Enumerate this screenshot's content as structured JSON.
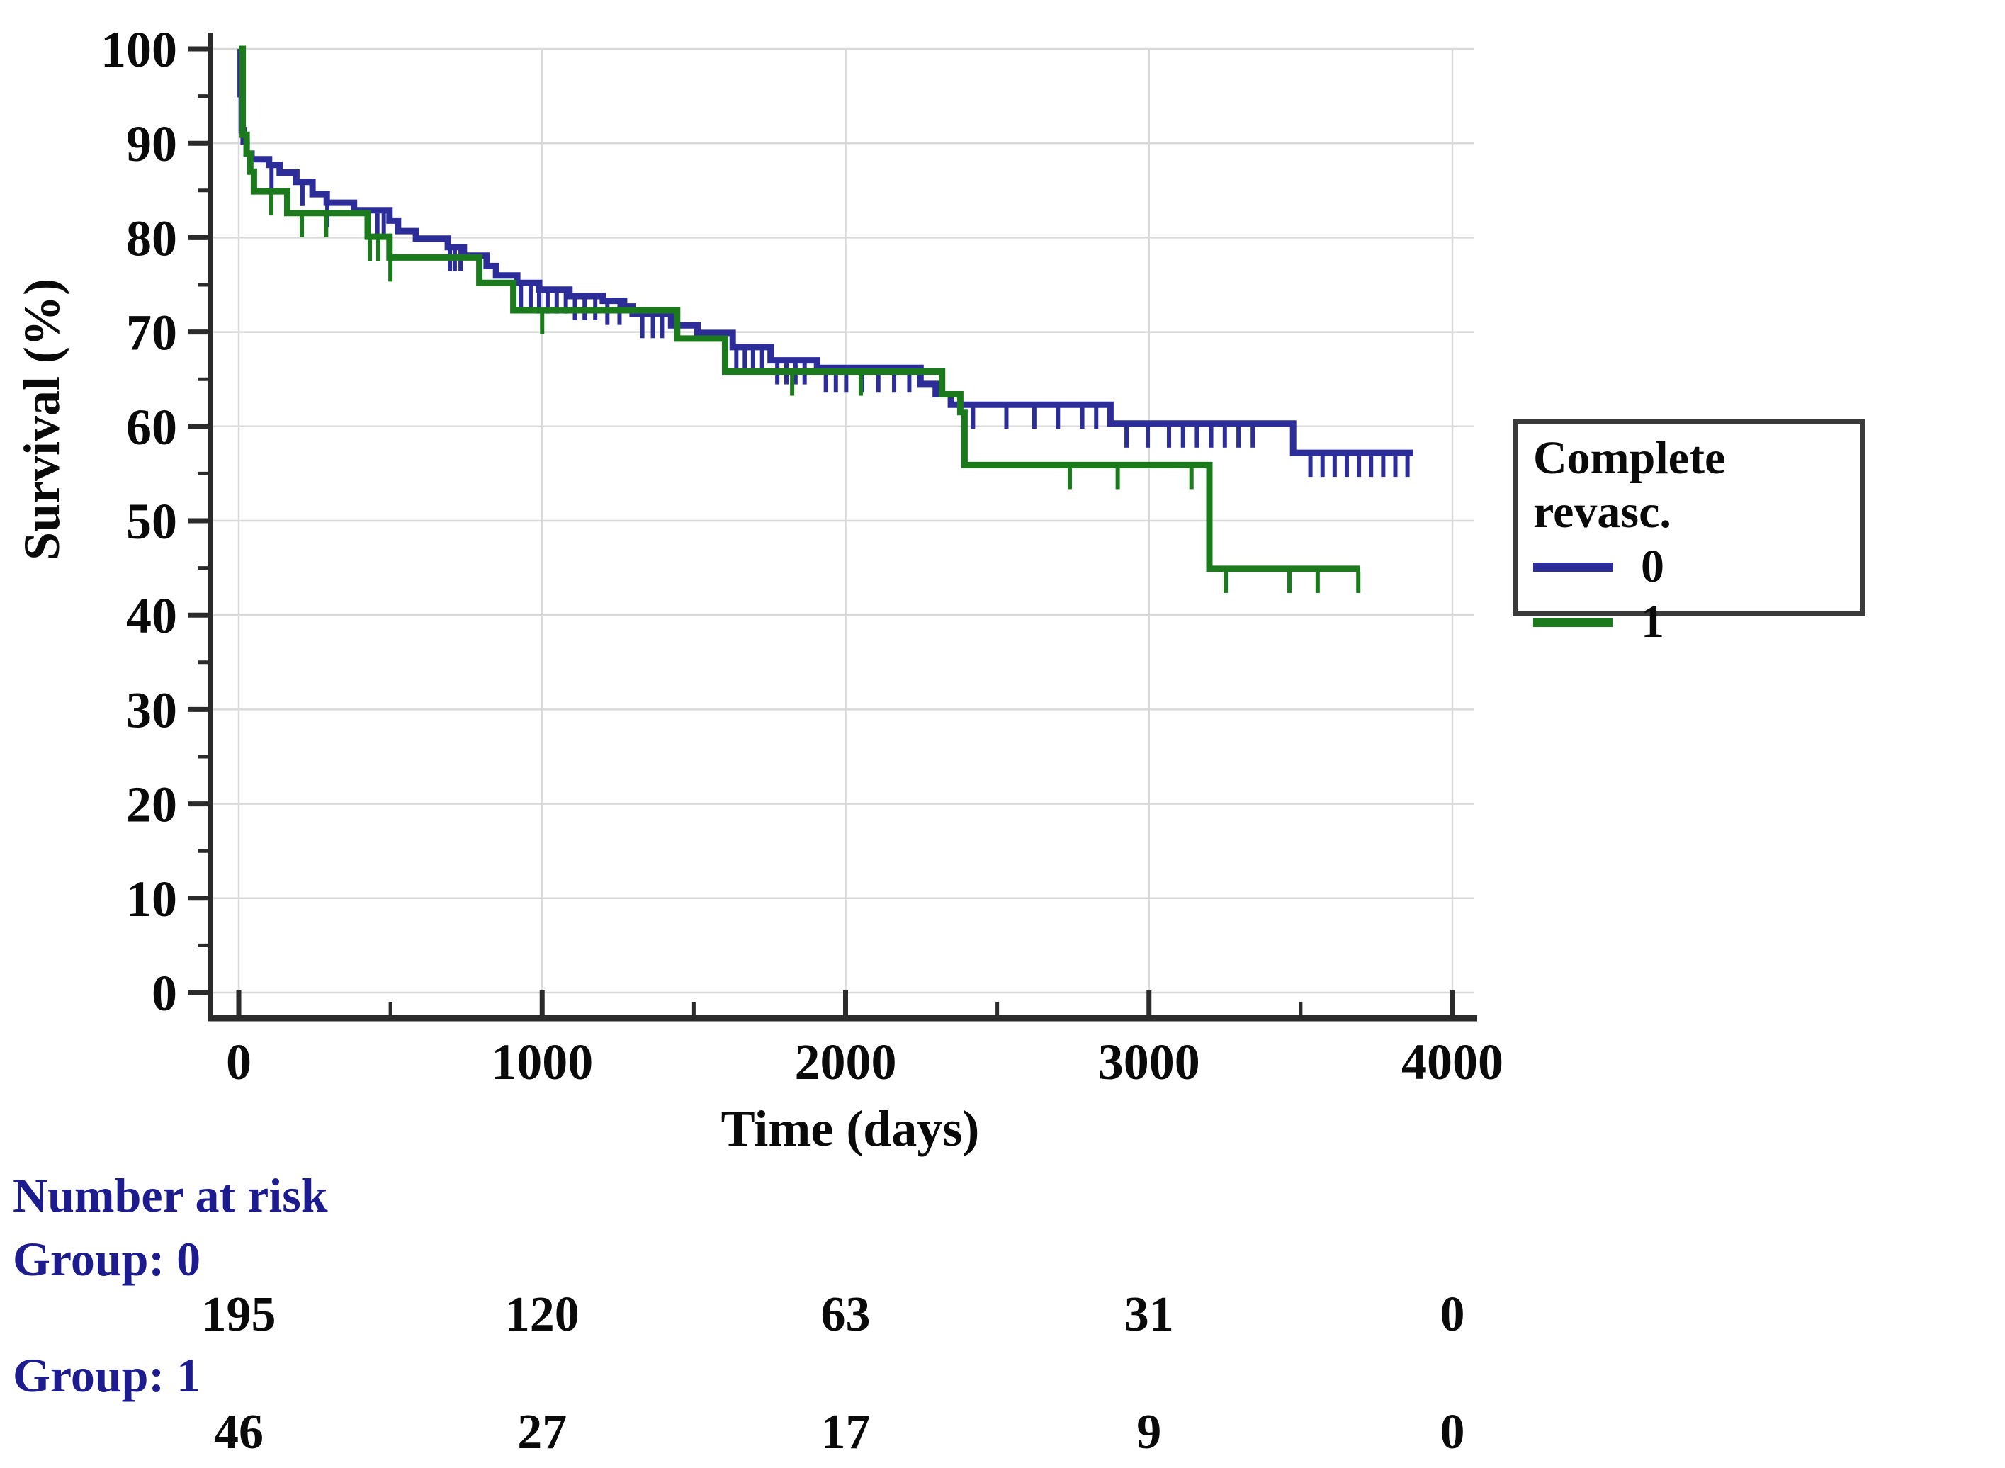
{
  "chart_data": {
    "type": "line",
    "subtype": "kaplan-meier-step",
    "title": "",
    "xlabel": "Time (days)",
    "ylabel": "Survival (%)",
    "xlim": [
      0,
      4000
    ],
    "ylim": [
      0,
      100
    ],
    "x_ticks": [
      0,
      1000,
      2000,
      3000,
      4000
    ],
    "x_minor_ticks": [
      500,
      1500,
      2500,
      3500
    ],
    "y_ticks": [
      0,
      10,
      20,
      30,
      40,
      50,
      60,
      70,
      80,
      90,
      100
    ],
    "y_minor_ticks": [
      5,
      15,
      25,
      35,
      45,
      55,
      65,
      75,
      85,
      95
    ],
    "grid": "light-gray-both-axes",
    "legend": {
      "title": "Complete revasc.",
      "position": "right",
      "entries": [
        {
          "label": "0",
          "color": "#2d2d99"
        },
        {
          "label": "1",
          "color": "#1b7a1b"
        }
      ]
    },
    "series": [
      {
        "name": "0",
        "color": "#2d2d99",
        "steps": [
          [
            0,
            100
          ],
          [
            6,
            95.2
          ],
          [
            10,
            91.4
          ],
          [
            16,
            90.2
          ],
          [
            26,
            88.9
          ],
          [
            42,
            88.3
          ],
          [
            100,
            87.7
          ],
          [
            135,
            86.9
          ],
          [
            190,
            85.9
          ],
          [
            243,
            84.6
          ],
          [
            290,
            83.7
          ],
          [
            380,
            82.9
          ],
          [
            497,
            81.8
          ],
          [
            525,
            80.7
          ],
          [
            584,
            79.9
          ],
          [
            689,
            79.0
          ],
          [
            742,
            78.1
          ],
          [
            817,
            77.0
          ],
          [
            848,
            76.0
          ],
          [
            918,
            75.2
          ],
          [
            990,
            74.5
          ],
          [
            1090,
            73.8
          ],
          [
            1200,
            73.3
          ],
          [
            1270,
            72.7
          ],
          [
            1298,
            71.9
          ],
          [
            1425,
            70.7
          ],
          [
            1512,
            69.9
          ],
          [
            1628,
            68.4
          ],
          [
            1753,
            67.0
          ],
          [
            1906,
            66.2
          ],
          [
            2247,
            64.5
          ],
          [
            2297,
            63.4
          ],
          [
            2347,
            62.3
          ],
          [
            2873,
            60.3
          ],
          [
            3475,
            57.2
          ],
          [
            3871,
            57.2
          ]
        ],
        "censor_times": [
          108,
          210,
          292,
          457,
          478,
          696,
          712,
          731,
          930,
          962,
          990,
          1018,
          1048,
          1078,
          1108,
          1140,
          1175,
          1215,
          1255,
          1330,
          1365,
          1395,
          1640,
          1668,
          1695,
          1725,
          1775,
          1805,
          1835,
          1865,
          1935,
          1968,
          2002,
          2055,
          2108,
          2160,
          2210,
          2420,
          2530,
          2622,
          2700,
          2780,
          2826,
          2926,
          2996,
          3066,
          3112,
          3158,
          3205,
          3250,
          3295,
          3342,
          3532,
          3572,
          3612,
          3652,
          3692,
          3732,
          3772,
          3812,
          3852
        ]
      },
      {
        "name": "1",
        "color": "#1b7a1b",
        "steps": [
          [
            0,
            100
          ],
          [
            13,
            90.9
          ],
          [
            26,
            88.9
          ],
          [
            38,
            87.0
          ],
          [
            50,
            84.9
          ],
          [
            160,
            82.6
          ],
          [
            425,
            80.1
          ],
          [
            497,
            77.9
          ],
          [
            793,
            75.2
          ],
          [
            905,
            72.3
          ],
          [
            1445,
            69.3
          ],
          [
            1603,
            65.8
          ],
          [
            2318,
            63.4
          ],
          [
            2378,
            61.5
          ],
          [
            2392,
            55.9
          ],
          [
            3199,
            44.9
          ],
          [
            3696,
            44.9
          ]
        ],
        "censor_times": [
          107,
          208,
          288,
          432,
          460,
          500,
          1000,
          1824,
          2050,
          2739,
          2897,
          3140,
          3253,
          3463,
          3556,
          3690
        ]
      }
    ],
    "at_risk": {
      "header": "Number at risk",
      "time_points": [
        0,
        1000,
        2000,
        3000,
        4000
      ],
      "groups": [
        {
          "label": "Group: 0",
          "values": [
            "195",
            "120",
            "63",
            "31",
            "0"
          ]
        },
        {
          "label": "Group: 1",
          "values": [
            "46",
            "27",
            "17",
            "9",
            "0"
          ]
        }
      ]
    }
  },
  "colors": {
    "axis": "#2b2b2b",
    "grid": "#d9d9d9",
    "tick_label": "#0a0a0a",
    "risk_label": "#1c1c8f",
    "risk_number": "#0a0a0a",
    "legend_border": "#3a3a3a",
    "background": "#ffffff"
  }
}
